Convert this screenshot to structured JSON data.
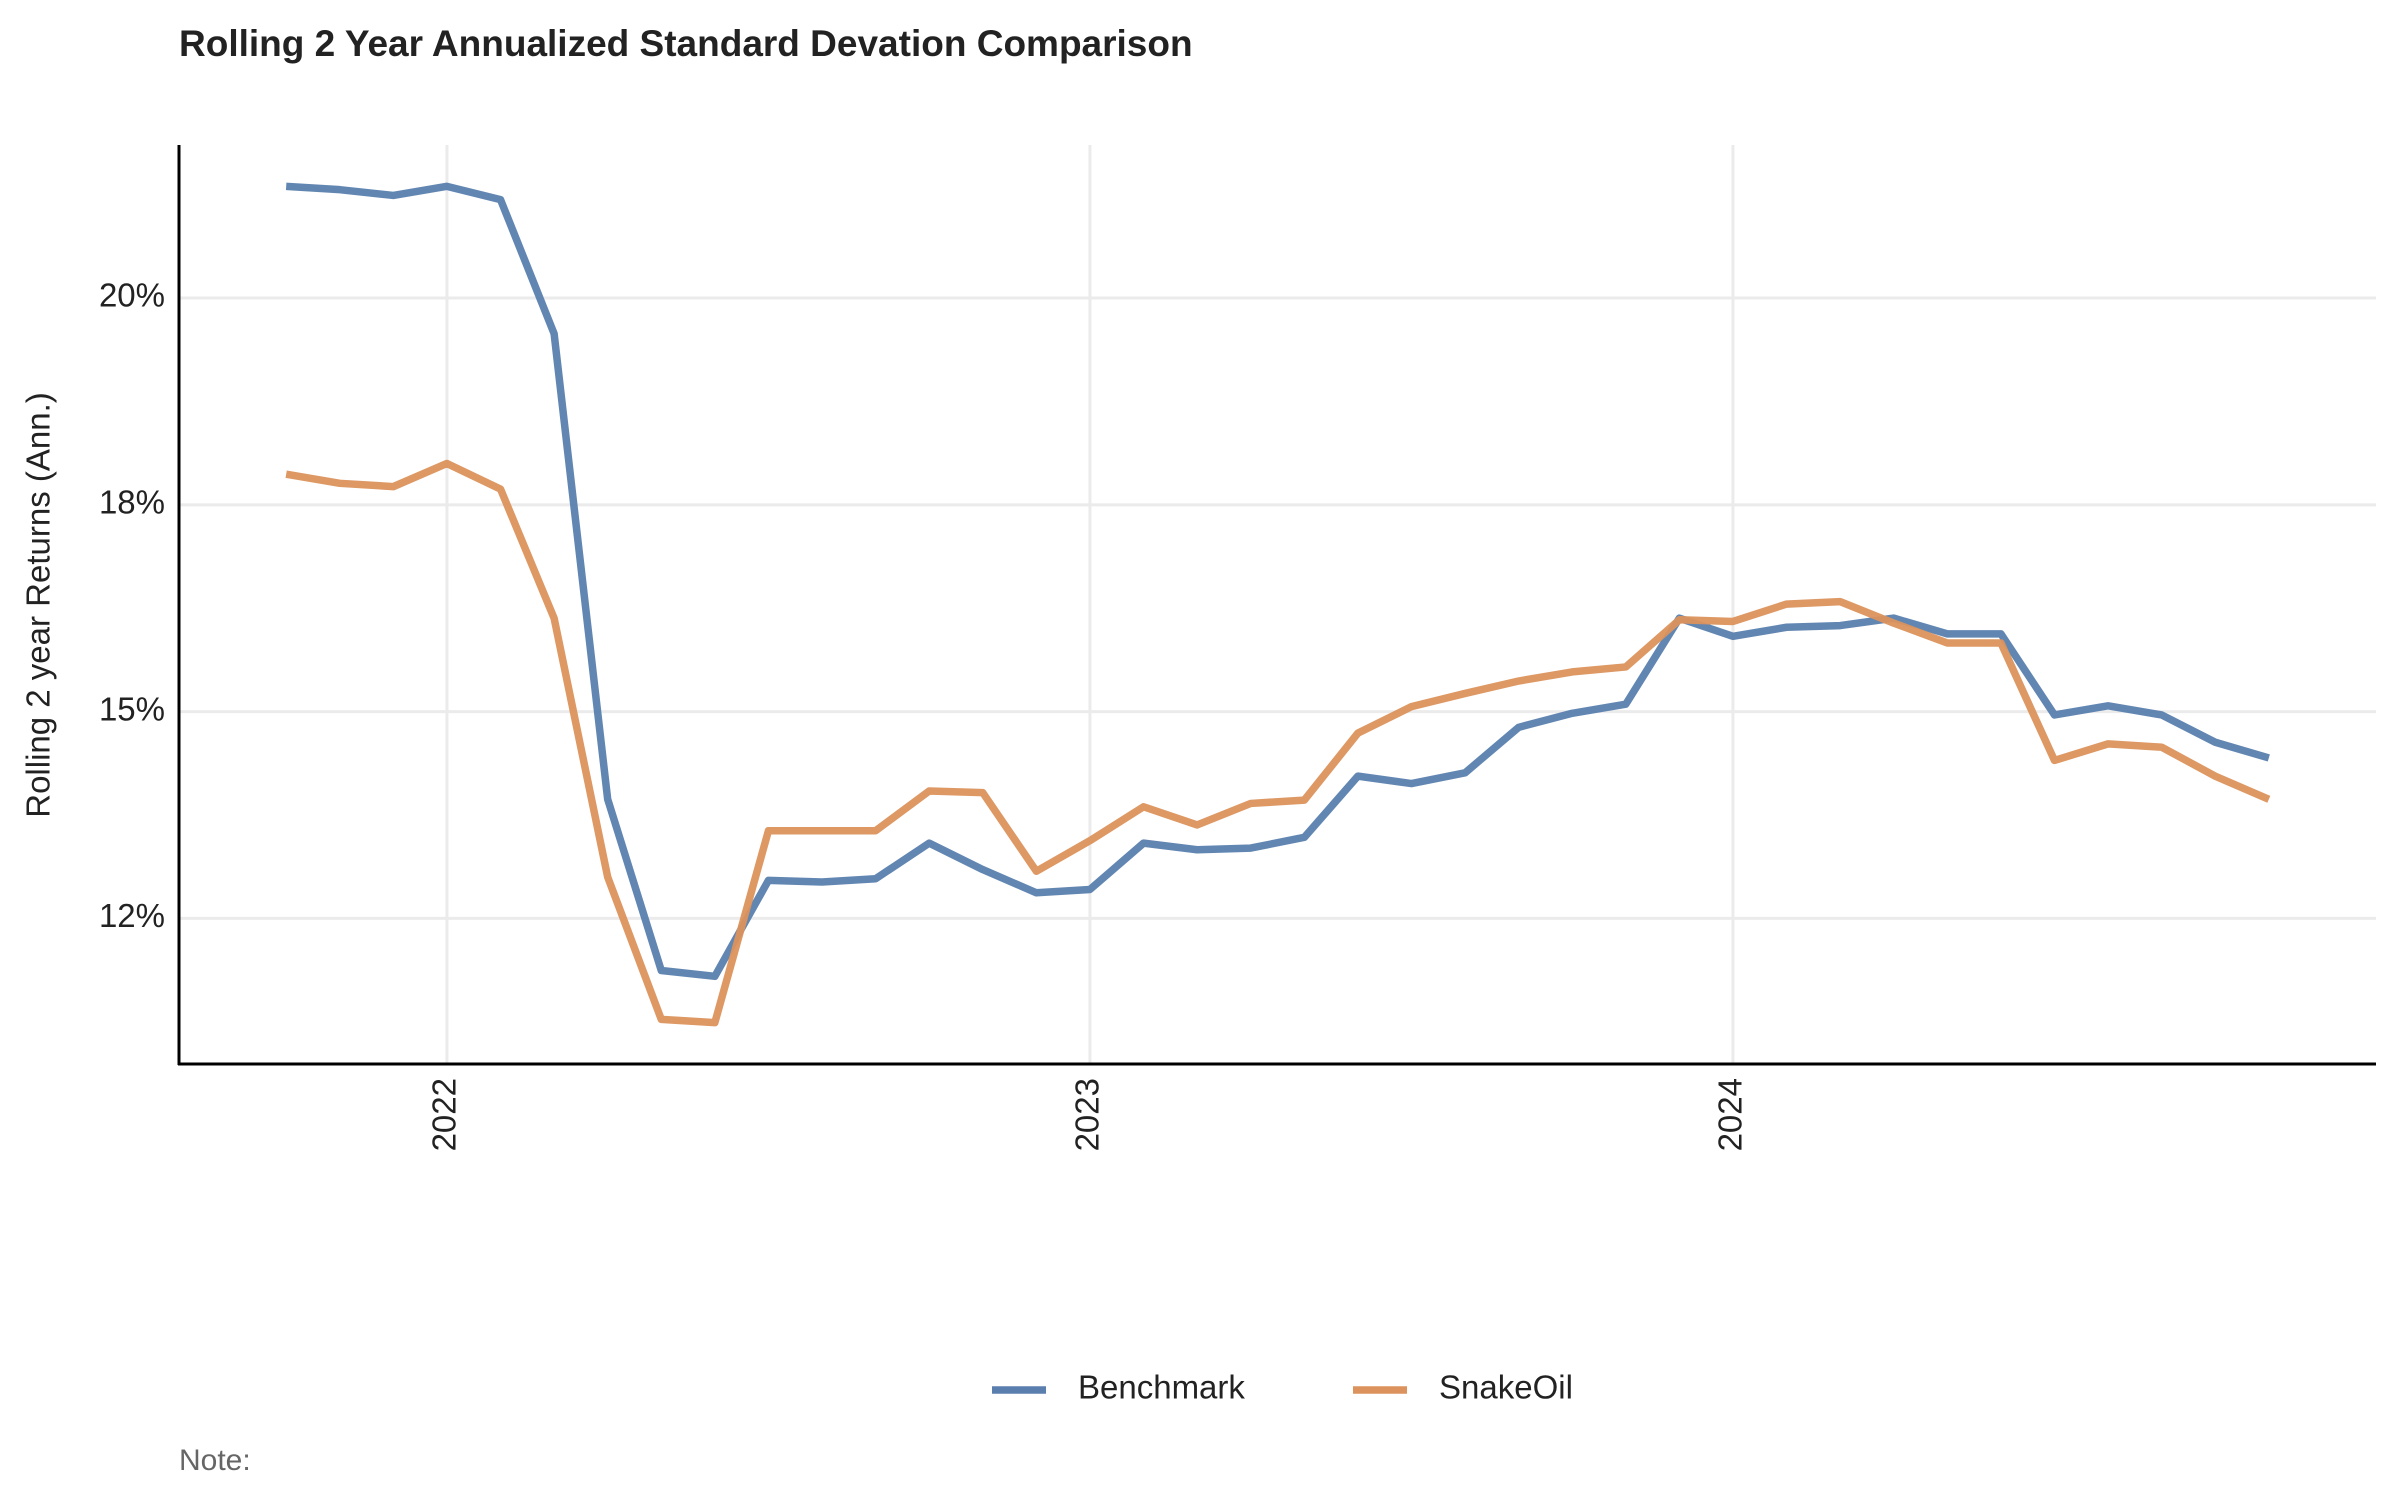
{
  "chart_data": {
    "type": "line",
    "title": "Rolling 2 Year Annualized Standard Devation Comparison",
    "y_label": "Rolling 2 year Returns (Ann.)",
    "note": "Note:",
    "x": [
      "2021-10",
      "2021-11",
      "2021-12",
      "2022-01",
      "2022-02",
      "2022-03",
      "2022-04",
      "2022-05",
      "2022-06",
      "2022-07",
      "2022-08",
      "2022-09",
      "2022-10",
      "2022-11",
      "2022-12",
      "2023-01",
      "2023-02",
      "2023-03",
      "2023-04",
      "2023-05",
      "2023-06",
      "2023-07",
      "2023-08",
      "2023-09",
      "2023-10",
      "2023-11",
      "2023-12",
      "2024-01",
      "2024-02",
      "2024-03",
      "2024-04",
      "2024-05",
      "2024-06",
      "2024-07",
      "2024-08",
      "2024-09",
      "2024-10",
      "2024-11"
    ],
    "series": [
      {
        "name": "Benchmark",
        "color": "#5a7fae",
        "values": [
          21.35,
          21.31,
          21.24,
          21.35,
          21.19,
          19.57,
          13.94,
          11.87,
          11.8,
          12.96,
          12.94,
          12.98,
          13.41,
          13.09,
          12.81,
          12.85,
          13.41,
          13.33,
          13.35,
          13.48,
          14.22,
          14.13,
          14.26,
          14.81,
          14.98,
          15.09,
          16.13,
          15.91,
          16.02,
          16.04,
          16.13,
          15.94,
          15.94,
          14.96,
          15.07,
          14.96,
          14.63,
          14.44
        ]
      },
      {
        "name": "SnakeOil",
        "color": "#db925c",
        "values": [
          17.87,
          17.76,
          17.72,
          18.0,
          17.69,
          16.13,
          13.0,
          11.28,
          11.24,
          13.56,
          13.56,
          13.56,
          14.04,
          14.02,
          13.07,
          13.44,
          13.85,
          13.63,
          13.89,
          13.93,
          14.74,
          15.06,
          15.22,
          15.37,
          15.48,
          15.54,
          16.11,
          16.09,
          16.3,
          16.33,
          16.07,
          15.83,
          15.83,
          14.41,
          14.61,
          14.57,
          14.22,
          13.94
        ]
      }
    ],
    "xlim": [
      "2021-08",
      "2025-01"
    ],
    "xticks": [
      {
        "value": "2022-01",
        "label": "2022"
      },
      {
        "value": "2023-01",
        "label": "2023"
      },
      {
        "value": "2024-01",
        "label": "2024"
      }
    ],
    "ylim": [
      10.74,
      21.85
    ],
    "yticks": [
      {
        "value": 12.5,
        "label": "12%"
      },
      {
        "value": 15,
        "label": "15%"
      },
      {
        "value": 17.5,
        "label": "18%"
      },
      {
        "value": 20,
        "label": "20%"
      }
    ],
    "grid": true,
    "legend": "bottom"
  }
}
